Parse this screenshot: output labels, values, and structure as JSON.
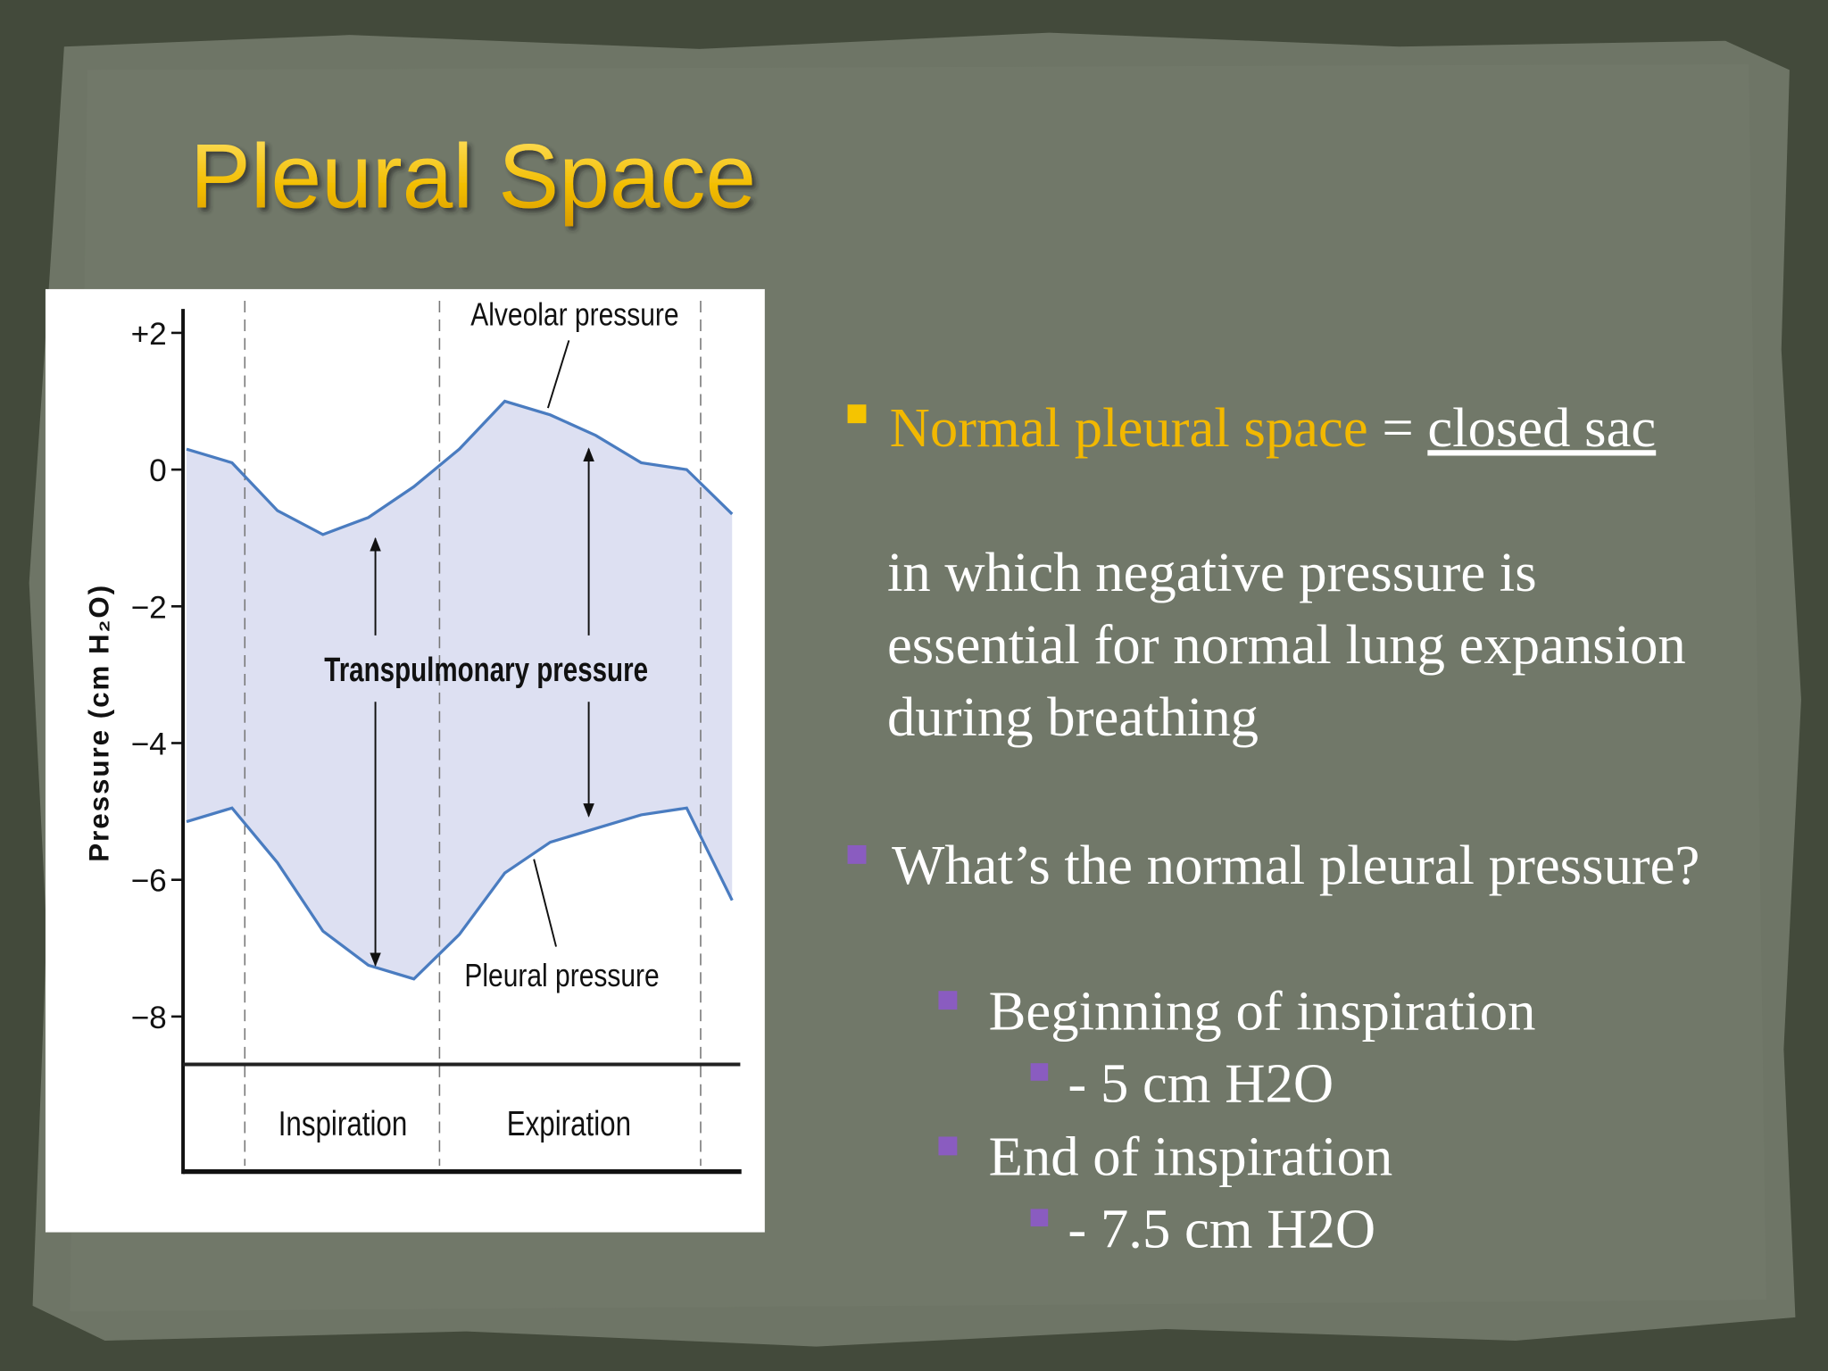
{
  "title": "Pleural Space",
  "bullet_1": {
    "highlight": "Normal pleural space",
    "connector": "=",
    "link": "closed sac",
    "lines": [
      "in which negative pressure is",
      "essential for normal lung expansion",
      "during breathing"
    ]
  },
  "bullet_2": {
    "text": "What’s the normal pleural pressure?",
    "items": [
      {
        "text": "Beginning of inspiration",
        "value": "- 5 cm H2O"
      },
      {
        "text": "End of inspiration",
        "value": "- 7.5 cm H2O"
      }
    ]
  },
  "chart_data": {
    "type": "line",
    "ylabel": "Pressure (cm H₂O)",
    "categories": [
      null,
      null,
      null,
      null,
      null,
      null,
      null,
      null,
      null,
      null,
      null,
      null,
      null
    ],
    "series": [
      {
        "name": "Alveolar pressure",
        "color": "#4a7cc0",
        "values": [
          0.3,
          0.1,
          -0.6,
          -0.95,
          -0.7,
          -0.25,
          0.3,
          1.0,
          0.8,
          0.5,
          0.1,
          0.0,
          -0.65
        ]
      },
      {
        "name": "Pleural pressure",
        "color": "#4a7cc0",
        "values": [
          -5.15,
          -4.95,
          -5.75,
          -6.75,
          -7.25,
          -7.45,
          -6.8,
          -5.9,
          -5.45,
          -5.25,
          -5.05,
          -4.95,
          -6.3
        ]
      }
    ],
    "fill_color": "#dde0f2",
    "annotation": "Transpulmonary pressure",
    "phases": [
      "Inspiration",
      "Expiration"
    ],
    "ylim": [
      -8.7,
      2.35
    ],
    "yticks": [
      {
        "value": 2,
        "label": "+2"
      },
      0,
      {
        "value": -2,
        "label": "−2"
      },
      {
        "value": -4,
        "label": "−4"
      },
      {
        "value": -6,
        "label": "−6"
      },
      {
        "value": -8,
        "label": "−8"
      }
    ]
  }
}
